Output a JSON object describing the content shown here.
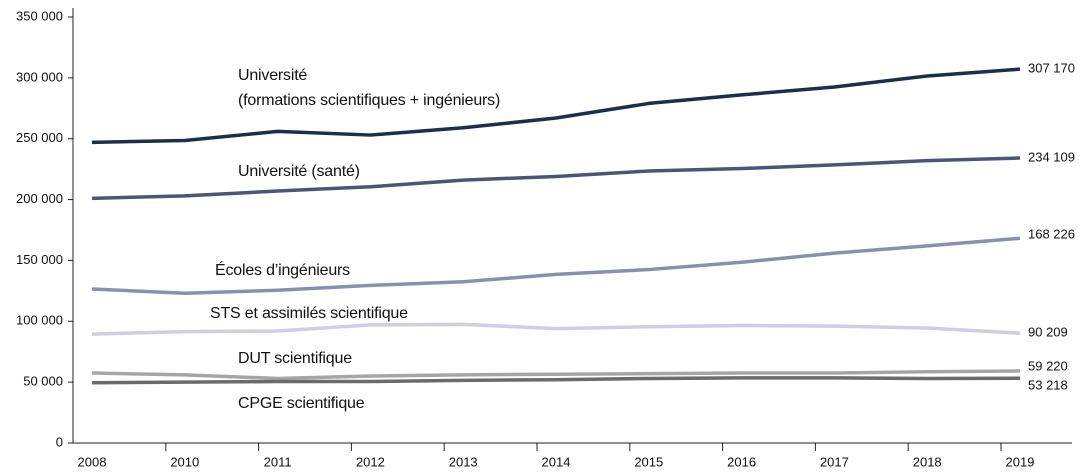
{
  "chart_data": {
    "type": "line",
    "categories": [
      "2008",
      "2010",
      "2011",
      "2012",
      "2013",
      "2014",
      "2015",
      "2016",
      "2017",
      "2018",
      "2019"
    ],
    "series": [
      {
        "name": "Université\n(formations scientifiques + ingénieurs)",
        "color": "#1c2e4d",
        "values": [
          247000,
          248500,
          256000,
          253000,
          259000,
          267000,
          279000,
          286000,
          292500,
          301500,
          307170
        ],
        "value_labels": [
          null,
          null,
          null,
          null,
          null,
          null,
          null,
          null,
          null,
          null,
          "307 170"
        ]
      },
      {
        "name": "Université (santé)",
        "color": "#4a5677",
        "values": [
          201000,
          203000,
          207000,
          210500,
          216000,
          219000,
          223500,
          225500,
          228500,
          232000,
          234109
        ],
        "value_labels": [
          null,
          null,
          null,
          null,
          null,
          null,
          null,
          null,
          null,
          null,
          "234 109"
        ]
      },
      {
        "name": "Écoles d’ingénieurs",
        "color": "#8a90ab",
        "values": [
          126500,
          123000,
          125500,
          129500,
          132500,
          138500,
          142500,
          148500,
          156000,
          162000,
          168226
        ],
        "value_labels": [
          null,
          null,
          null,
          null,
          null,
          null,
          null,
          null,
          null,
          null,
          "168 226"
        ]
      },
      {
        "name": "STS et assimilés scientifique",
        "color": "#cfd0de",
        "values": [
          89500,
          91500,
          92000,
          97000,
          97500,
          94000,
          95500,
          96500,
          96000,
          94500,
          90209
        ],
        "value_labels": [
          null,
          null,
          null,
          null,
          null,
          null,
          null,
          null,
          null,
          null,
          "90 209"
        ]
      },
      {
        "name": "DUT scientifique",
        "color": "#a5a5a5",
        "values": [
          57500,
          56000,
          53000,
          55000,
          56000,
          56500,
          57000,
          57500,
          57500,
          58500,
          59220
        ],
        "value_labels": [
          null,
          null,
          null,
          null,
          null,
          null,
          null,
          null,
          null,
          null,
          "59 220"
        ]
      },
      {
        "name": "CPGE scientifique",
        "color": "#6b6b6b",
        "values": [
          49500,
          50000,
          50500,
          50500,
          51500,
          52000,
          53000,
          53500,
          53500,
          53000,
          53218
        ],
        "value_labels": [
          null,
          null,
          null,
          null,
          null,
          null,
          null,
          null,
          null,
          null,
          "53 218"
        ]
      }
    ],
    "ylim": [
      0,
      350000
    ],
    "yticks": [
      {
        "value": 0,
        "label": "0"
      },
      {
        "value": 50000,
        "label": "50 000"
      },
      {
        "value": 100000,
        "label": "100 000"
      },
      {
        "value": 150000,
        "label": "150 000"
      },
      {
        "value": 200000,
        "label": "200 000"
      },
      {
        "value": 250000,
        "label": "250 000"
      },
      {
        "value": 300000,
        "label": "300 000"
      },
      {
        "value": 350000,
        "label": "350 000"
      }
    ]
  }
}
